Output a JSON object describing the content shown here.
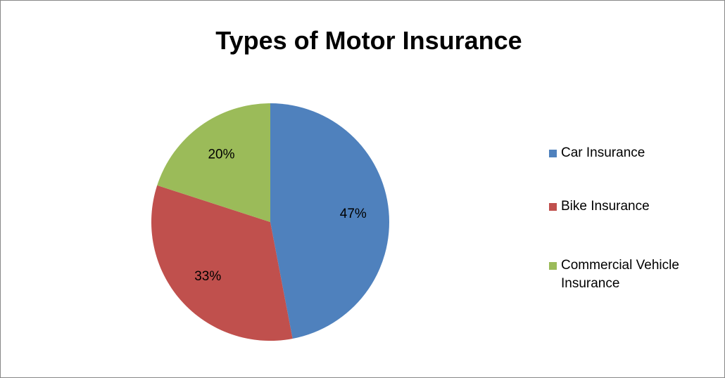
{
  "chart_data": {
    "type": "pie",
    "title": "Types of Motor Insurance",
    "categories": [
      "Car Insurance",
      "Bike Insurance",
      "Commercial Vehicle Insurance"
    ],
    "values": [
      47,
      33,
      20
    ],
    "value_labels": [
      "47%",
      "33%",
      "20%"
    ],
    "colors": [
      "#4f81bd",
      "#c0504d",
      "#9bbb59"
    ],
    "legend": "right"
  }
}
